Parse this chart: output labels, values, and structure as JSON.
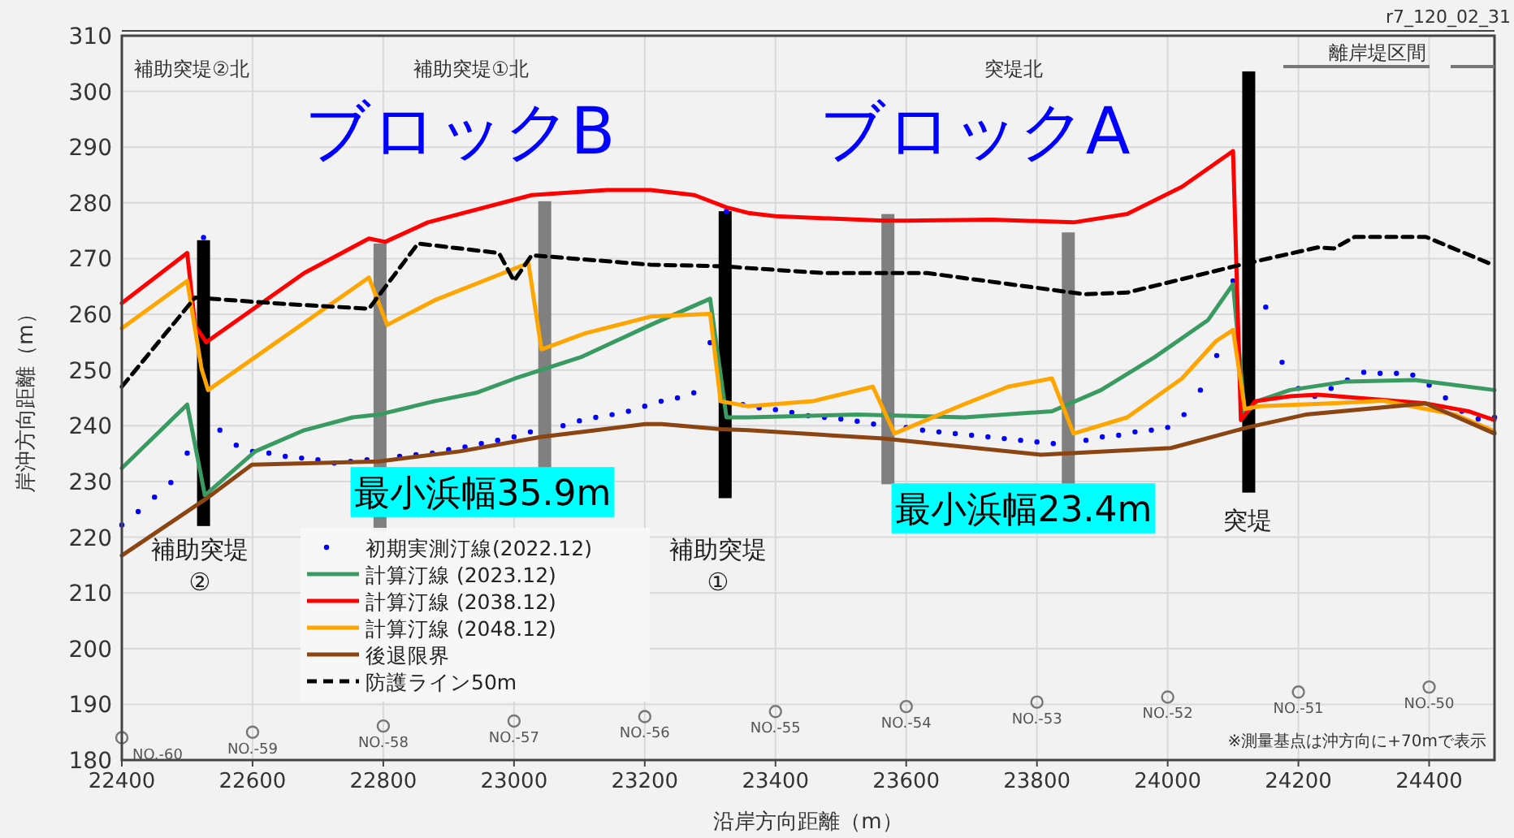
{
  "chart_data": {
    "type": "line",
    "xlabel": "沿岸方向距離（m）",
    "ylabel": "岸沖方向距離（m）",
    "xlim": [
      22400,
      24500
    ],
    "ylim": [
      180,
      310
    ],
    "xticks": [
      22400,
      22600,
      22800,
      23000,
      23200,
      23400,
      23600,
      23800,
      24000,
      24200,
      24400
    ],
    "yticks": [
      180,
      190,
      200,
      210,
      220,
      230,
      240,
      250,
      260,
      270,
      280,
      290,
      300,
      310
    ],
    "grid": true,
    "legend": "bottom left",
    "series": [
      {
        "name": "初期実測汀線(2022.12)",
        "type": "scatter",
        "marker": "circle",
        "color": "#0000ff",
        "x": [
          22400,
          22425,
          22450,
          22475,
          22500,
          22525,
          22550,
          22575,
          22600,
          22625,
          22650,
          22675,
          22700,
          22725,
          22750,
          22775,
          22825,
          22850,
          22875,
          22900,
          22925,
          22950,
          22975,
          23000,
          23025,
          23075,
          23100,
          23125,
          23150,
          23175,
          23200,
          23225,
          23250,
          23275,
          23300,
          23325,
          23350,
          23375,
          23400,
          23425,
          23450,
          23475,
          23500,
          23525,
          23550,
          23600,
          23625,
          23650,
          23675,
          23700,
          23725,
          23750,
          23775,
          23800,
          23825,
          23875,
          23900,
          23925,
          23950,
          23975,
          24000,
          24025,
          24050,
          24075,
          24100,
          24150,
          24175,
          24200,
          24225,
          24250,
          24275,
          24300,
          24325,
          24350,
          24375,
          24400,
          24425,
          24450,
          24475,
          24500
        ],
        "values": [
          222.2,
          224.6,
          227.2,
          229.8,
          235.1,
          273.8,
          239.2,
          236.5,
          235.4,
          235.1,
          234.5,
          234.2,
          233.9,
          233.3,
          233.6,
          233.9,
          234.5,
          234.8,
          235.1,
          235.7,
          236.2,
          236.8,
          237.4,
          238,
          238.9,
          240,
          240.9,
          241.5,
          242,
          242.6,
          243.5,
          244.4,
          245,
          245.9,
          254.9,
          278.5,
          243.8,
          243.2,
          242.9,
          242.4,
          241.8,
          241.5,
          241.2,
          240.8,
          240.3,
          239.7,
          239.2,
          238.9,
          238.6,
          238.3,
          238,
          237.7,
          237.4,
          237.1,
          236.8,
          237.4,
          238,
          238.3,
          238.9,
          239.2,
          239.7,
          242,
          246.4,
          252.6,
          266,
          261.3,
          251.4,
          246.7,
          245.3,
          246.7,
          248.2,
          249.6,
          249.4,
          249.4,
          249.1,
          247.3,
          245,
          242.6,
          241.2,
          241.5
        ]
      },
      {
        "name": "計算汀線 (2023.12)",
        "color": "#3a9b62",
        "line_style": "solid",
        "x": [
          22400,
          22500,
          22527,
          22604,
          22679,
          22753,
          22793,
          22878,
          22942,
          23002,
          23102,
          23209,
          23300,
          23325,
          23358,
          23525,
          23689,
          23823,
          23898,
          23980,
          24062,
          24100,
          24118,
          24137,
          24187,
          24271,
          24378,
          24500
        ],
        "values": [
          232.4,
          243.8,
          227.5,
          235.4,
          239.2,
          241.5,
          242,
          244.4,
          245.9,
          248.5,
          252.3,
          258.1,
          262.8,
          241.5,
          241.5,
          242,
          241.5,
          242.6,
          246.4,
          252.3,
          259,
          265.4,
          242,
          244.4,
          246.4,
          247.9,
          248.2,
          246.4
        ]
      },
      {
        "name": "計算汀線 (2038.12)",
        "color": "#ff0000",
        "line_style": "solid",
        "x": [
          22400,
          22500,
          22512,
          22529,
          22679,
          22778,
          22803,
          22868,
          23027,
          23142,
          23209,
          23276,
          23325,
          23358,
          23400,
          23565,
          23599,
          23731,
          23856,
          23938,
          24022,
          24100,
          24112,
          24134,
          24187,
          24229,
          24395,
          24460,
          24500
        ],
        "values": [
          262,
          271,
          258,
          255,
          267.4,
          273.6,
          273,
          276.5,
          281.4,
          282.3,
          282.3,
          281.4,
          279.2,
          278.2,
          277.6,
          276.8,
          276.8,
          277,
          276.5,
          278,
          282.9,
          289.3,
          241,
          244.4,
          245.3,
          245.6,
          244,
          242.6,
          241
        ]
      },
      {
        "name": "計算汀線 (2048.12)",
        "color": "#ffa500",
        "line_style": "solid",
        "x": [
          22400,
          22500,
          22522,
          22532,
          22778,
          22806,
          22878,
          23022,
          23042,
          23109,
          23209,
          23300,
          23316,
          23358,
          23457,
          23549,
          23582,
          23681,
          23756,
          23823,
          23856,
          23938,
          24022,
          24074,
          24100,
          24118,
          24140,
          24250,
          24330,
          24395,
          24440,
          24500
        ],
        "values": [
          257.5,
          266,
          250.2,
          246.4,
          266.6,
          258.1,
          262.5,
          269.2,
          253.7,
          256.6,
          259.6,
          260.1,
          244.4,
          243.5,
          244.4,
          247,
          238.6,
          243.5,
          247,
          248.5,
          238.6,
          241.5,
          248.5,
          255.2,
          257.2,
          243,
          243.5,
          244,
          244.5,
          243,
          242,
          239
        ]
      },
      {
        "name": "後退限界",
        "color": "#8b4513",
        "line_style": "solid",
        "x": [
          22400,
          22529,
          22599,
          22793,
          22917,
          23042,
          23126,
          23201,
          23226,
          23316,
          23358,
          23565,
          23806,
          24005,
          24122,
          24211,
          24395,
          24500
        ],
        "values": [
          216.7,
          226.9,
          233,
          233.6,
          235.4,
          238,
          239.2,
          240.3,
          240.3,
          239.4,
          239.2,
          237.7,
          234.8,
          236,
          239.7,
          242,
          244,
          238.6
        ]
      },
      {
        "name": "防護ライン50m",
        "color": "#000000",
        "line_style": "dashed",
        "x": [
          22400,
          22512,
          22644,
          22778,
          22853,
          22977,
          23000,
          23027,
          23209,
          23325,
          23358,
          23475,
          23632,
          23873,
          23938,
          24112,
          24229,
          24254,
          24286,
          24395,
          24497
        ],
        "values": [
          247,
          263,
          261.9,
          261,
          272.7,
          271,
          266,
          270.6,
          268.9,
          268.6,
          268.3,
          267.4,
          267.4,
          263.6,
          263.9,
          268.9,
          272,
          271.8,
          273.9,
          273.9,
          268.9
        ]
      },
      {
        "type": "bar",
        "color": "#000000",
        "x": [
          22525,
          23323,
          24124
        ],
        "base": [
          222,
          227,
          228
        ],
        "values": [
          51.3,
          51.5,
          75.6
        ]
      },
      {
        "type": "bar",
        "color": "#808080",
        "x": [
          22795,
          23047,
          23572,
          23848
        ],
        "base": [
          221,
          232,
          229.5,
          229.5
        ],
        "values": [
          51.7,
          48.3,
          48.5,
          45.2
        ]
      },
      {
        "type": "scatter",
        "marker": "circle",
        "color": "#777777",
        "x": [
          22400,
          22600,
          22800,
          23000,
          23200,
          23400,
          23600,
          23800,
          24000,
          24200,
          24400
        ],
        "values": [
          184,
          185,
          186.1,
          187,
          187.8,
          188.7,
          189.6,
          190.4,
          191.3,
          192.2,
          193.1
        ]
      }
    ],
    "annotations": [
      "補助突堤②北",
      "補助突堤①北",
      "突堤北",
      "離岸堤区間",
      "ブロックB",
      "ブロックA",
      "補助突堤\n②",
      "補助突堤\n①",
      "突堤",
      "最小浜幅35.9m",
      "最小浜幅23.4m",
      "r7_120_02_31",
      "※測量基点は沖方向に+70mで表示",
      {
        "text": "NO.-60",
        "x": 22400,
        "y": 184
      },
      {
        "text": "NO.-59",
        "x": 22600,
        "y": 185
      },
      {
        "text": "NO.-58",
        "x": 22800,
        "y": 186.1
      },
      {
        "text": "NO.-57",
        "x": 23000,
        "y": 187
      },
      {
        "text": "NO.-56",
        "x": 23200,
        "y": 187.8
      },
      {
        "text": "NO.-55",
        "x": 23400,
        "y": 188.7
      },
      {
        "text": "NO.-54",
        "x": 23600,
        "y": 189.6
      },
      {
        "text": "NO.-53",
        "x": 23800,
        "y": 190.4
      },
      {
        "text": "NO.-52",
        "x": 24000,
        "y": 191.3
      },
      {
        "text": "NO.-51",
        "x": 24200,
        "y": 192.2
      },
      {
        "text": "NO.-50",
        "x": 24400,
        "y": 193.1
      }
    ]
  }
}
